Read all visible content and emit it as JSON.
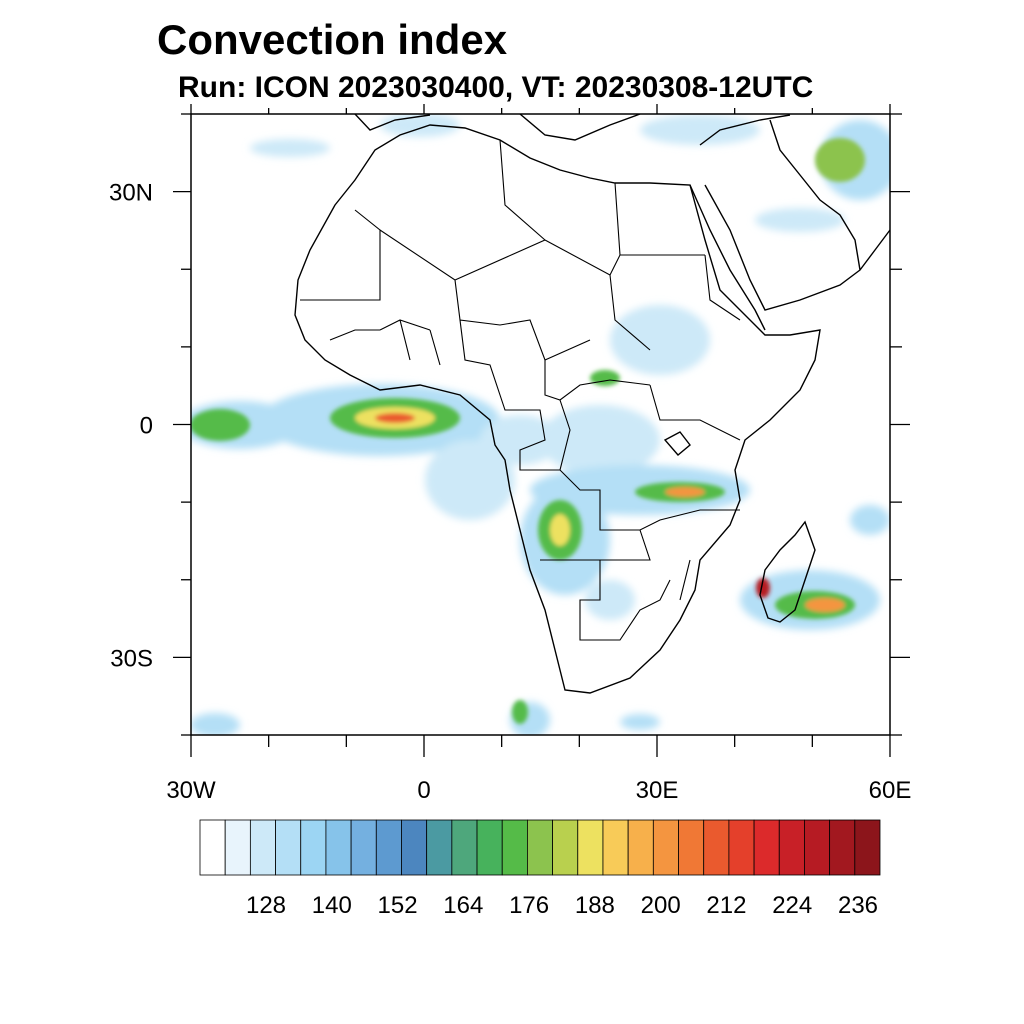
{
  "title": "Convection index",
  "subtitle": "Run: ICON 2023030400,  VT: 20230308-12UTC",
  "map": {
    "lon_range": [
      -30,
      60
    ],
    "lat_range": [
      -40,
      40
    ],
    "lon_ticks": [
      {
        "value": -30,
        "label": "30W"
      },
      {
        "value": 0,
        "label": "0"
      },
      {
        "value": 30,
        "label": "30E"
      },
      {
        "value": 60,
        "label": "60E"
      }
    ],
    "lat_ticks": [
      {
        "value": 30,
        "label": "30N"
      },
      {
        "value": 0,
        "label": "0"
      },
      {
        "value": -30,
        "label": "30S"
      }
    ]
  },
  "colorbar": {
    "labels": [
      "128",
      "140",
      "152",
      "164",
      "176",
      "188",
      "200",
      "212",
      "224",
      "236"
    ],
    "colors": [
      "#ffffff",
      "#e8f4fc",
      "#cde9f8",
      "#b4dff6",
      "#9cd5f3",
      "#86c3ea",
      "#74b0e0",
      "#5d9ad0",
      "#4c86bf",
      "#4b9aa2",
      "#4ea77c",
      "#47b25c",
      "#55bb48",
      "#8cc34e",
      "#b9d04e",
      "#ede160",
      "#f8cb58",
      "#f7b04b",
      "#f49540",
      "#f07835",
      "#ea5a2e",
      "#e4402b",
      "#dc2a2b",
      "#c82027",
      "#b61b23",
      "#a2181f",
      "#8c151b"
    ]
  }
}
